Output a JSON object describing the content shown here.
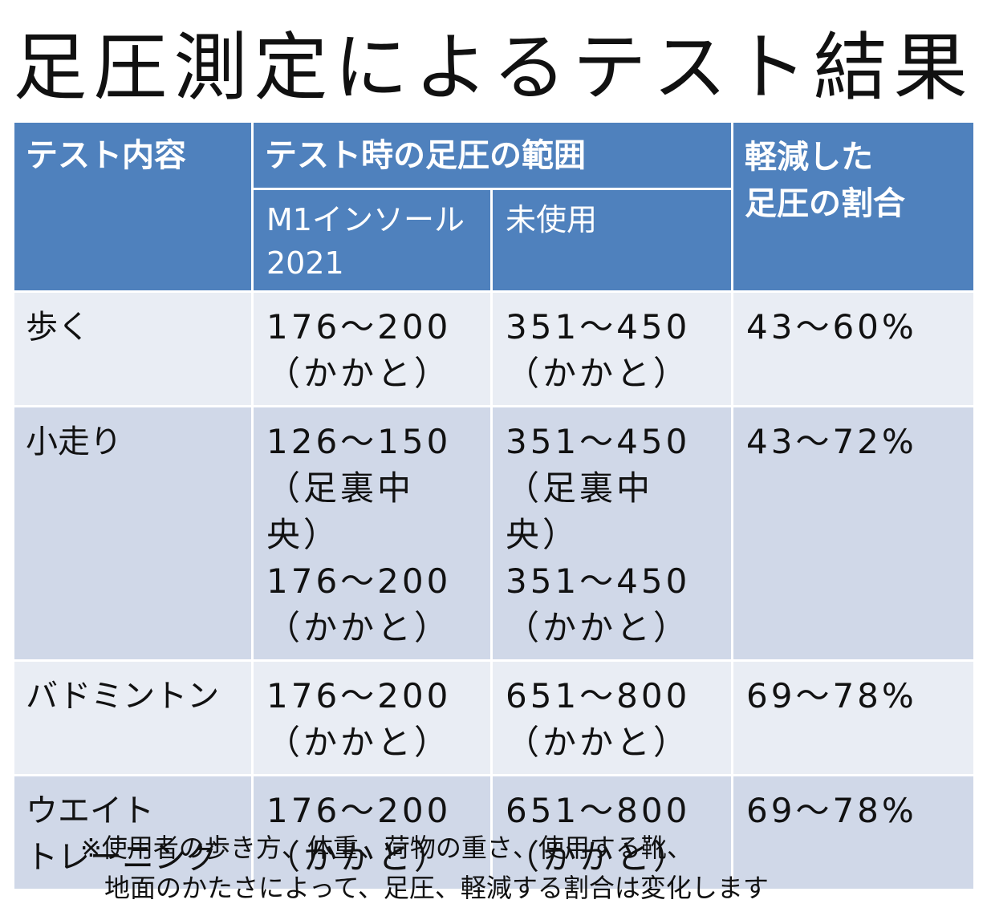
{
  "title": "足圧測定によるテスト結果",
  "colors": {
    "header_bg": "#4f81bd",
    "row_light_bg": "#e9edf4",
    "row_dark_bg": "#d0d8e8",
    "header_text": "#ffffff"
  },
  "table": {
    "headers": {
      "test": "テスト内容",
      "range_group": "テスト時の足圧の範囲",
      "insole": "M1インソール\n2021",
      "unused": "未使用",
      "reduction": "軽減した\n足圧の割合"
    },
    "rows": [
      {
        "test": "歩く",
        "insole": "176～200\n（かかと）",
        "unused": "351～450\n（かかと）",
        "reduction": "43～60%"
      },
      {
        "test": "小走り",
        "insole": "126～150\n（足裏中央）\n176～200\n（かかと）",
        "unused": "351～450\n（足裏中央）\n351～450\n（かかと）",
        "reduction": "43～72%"
      },
      {
        "test": "バドミントン",
        "insole": "176～200\n（かかと）",
        "unused": "651～800\n（かかと）",
        "reduction": "69～78%"
      },
      {
        "test": "ウエイト\nトレーニング",
        "insole": "176～200\n（かかと）",
        "unused": "651～800\n（かかと）",
        "reduction": "69～78%"
      }
    ]
  },
  "footnote": {
    "line1": "※使用者の歩き方、体重、荷物の重さ、使用する靴、",
    "line2": "地面のかたさによって、足圧、軽減する割合は変化します"
  }
}
